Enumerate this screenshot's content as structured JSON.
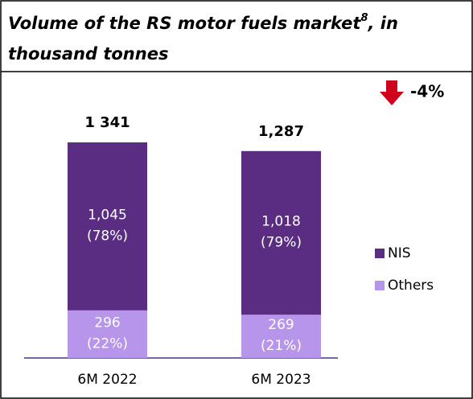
{
  "chart_data": {
    "type": "stacked_bar",
    "title": [
      "Volume of the RS motor fuels market",
      "8",
      ", in",
      "thousand tonnes"
    ],
    "categories": [
      "6M 2022",
      "6M 2023"
    ],
    "series": [
      {
        "name": "Others",
        "color": "#b795ea",
        "values": [
          296,
          269
        ],
        "value_labels": [
          "296",
          "269"
        ],
        "share_labels": [
          "(22%)",
          "(21%)"
        ]
      },
      {
        "name": "NIS",
        "color": "#5a2d82",
        "values": [
          1045,
          1018
        ],
        "value_labels": [
          "1,045",
          "1,018"
        ],
        "share_labels": [
          "(78%)",
          "(79%)"
        ]
      }
    ],
    "totals": [
      1341,
      1287
    ],
    "total_labels": [
      "1 341",
      "1,287"
    ],
    "annotation": {
      "text": "-4%",
      "color": "#d0021b"
    },
    "legend": "right"
  }
}
